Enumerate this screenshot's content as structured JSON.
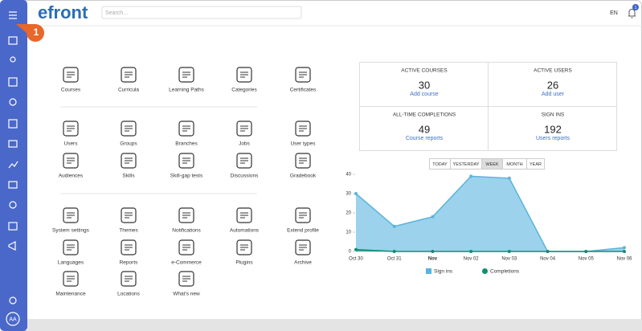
{
  "header": {
    "logo": "efront",
    "search_placeholder": "Search...",
    "language": "EN",
    "notification_count": "1",
    "step_marker": "1",
    "avatar": "AA"
  },
  "menu_rows": [
    [
      "Courses",
      "Curricula",
      "Learning Paths",
      "Categories",
      "Certificates"
    ],
    [
      "Users",
      "Groups",
      "Branches",
      "Jobs",
      "User types"
    ],
    [
      "Audiences",
      "Skills",
      "Skill-gap tests",
      "Discussions",
      "Gradebook"
    ],
    [
      "System settings",
      "Themes",
      "Notifications",
      "Automations",
      "Extend profile"
    ],
    [
      "Languages",
      "Reports",
      "e-Commerce",
      "Plugins",
      "Archive"
    ],
    [
      "Maintenance",
      "Locations",
      "What's new"
    ]
  ],
  "stats": [
    {
      "title": "ACTIVE COURSES",
      "value": "30",
      "link": "Add course"
    },
    {
      "title": "ACTIVE USERS",
      "value": "26",
      "link": "Add user"
    },
    {
      "title": "ALL-TIME COMPLETIONS",
      "value": "49",
      "link": "Course reports"
    },
    {
      "title": "SIGN INS",
      "value": "192",
      "link": "Users reports"
    }
  ],
  "period_buttons": [
    "TODAY",
    "YESTERDAY",
    "WEEK",
    "MONTH",
    "YEAR"
  ],
  "chart_data": {
    "type": "area",
    "categories": [
      "Oct 30",
      "Oct 31",
      "Nov",
      "Nov 02",
      "Nov 03",
      "Nov 04",
      "Nov 05",
      "Nov 06"
    ],
    "series": [
      {
        "name": "Sign ins",
        "color": "#5ab4dd",
        "values": [
          30,
          13,
          18,
          39,
          38,
          0,
          0,
          2
        ]
      },
      {
        "name": "Completions",
        "color": "#0e8f72",
        "values": [
          1,
          0,
          0,
          0,
          0,
          0,
          0,
          0
        ]
      }
    ],
    "ylim": [
      0,
      40
    ],
    "yticks": [
      0,
      10,
      20,
      30,
      40
    ],
    "grid": false
  }
}
